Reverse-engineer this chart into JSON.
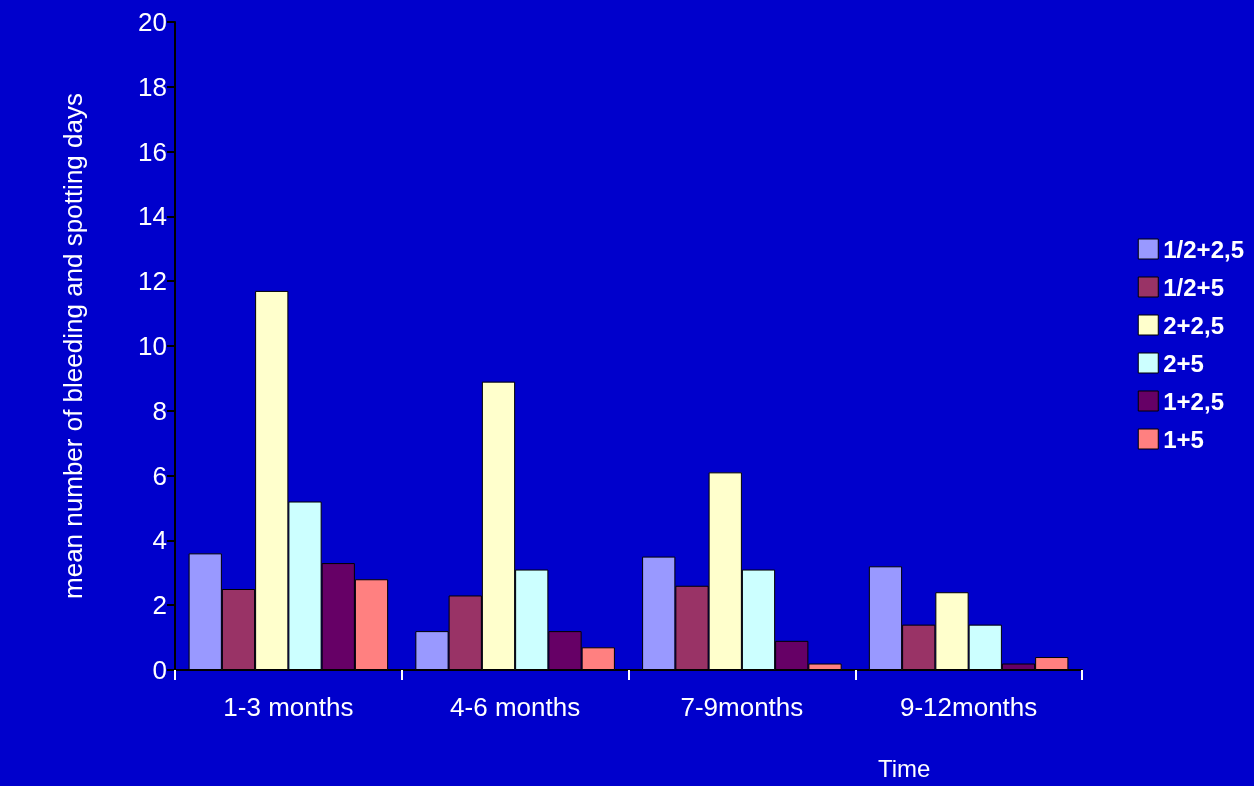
{
  "chart_data": {
    "type": "bar",
    "xlabel": "Time",
    "ylabel": "mean number of bleeding and spotting days",
    "categories": [
      "1-3 months",
      "4-6 months",
      "7-9months",
      "9-12months"
    ],
    "series": [
      {
        "name": "1/2+2,5",
        "color": "#9999ff",
        "values": [
          3.6,
          1.2,
          3.5,
          3.2
        ]
      },
      {
        "name": "1/2+5",
        "color": "#993366",
        "values": [
          2.5,
          2.3,
          2.6,
          1.4
        ]
      },
      {
        "name": "2+2,5",
        "color": "#ffffcc",
        "values": [
          11.7,
          8.9,
          6.1,
          2.4
        ]
      },
      {
        "name": "2+5",
        "color": "#ccffff",
        "values": [
          5.2,
          3.1,
          3.1,
          1.4
        ]
      },
      {
        "name": "1+2,5",
        "color": "#660066",
        "values": [
          3.3,
          1.2,
          0.9,
          0.2
        ]
      },
      {
        "name": "1+5",
        "color": "#ff8080",
        "values": [
          2.8,
          0.7,
          0.2,
          0.4
        ]
      }
    ],
    "ylim": [
      0,
      20
    ],
    "yticks": [
      0,
      2,
      4,
      6,
      8,
      10,
      12,
      14,
      16,
      18,
      20
    ],
    "grid": false,
    "legend": "right"
  }
}
